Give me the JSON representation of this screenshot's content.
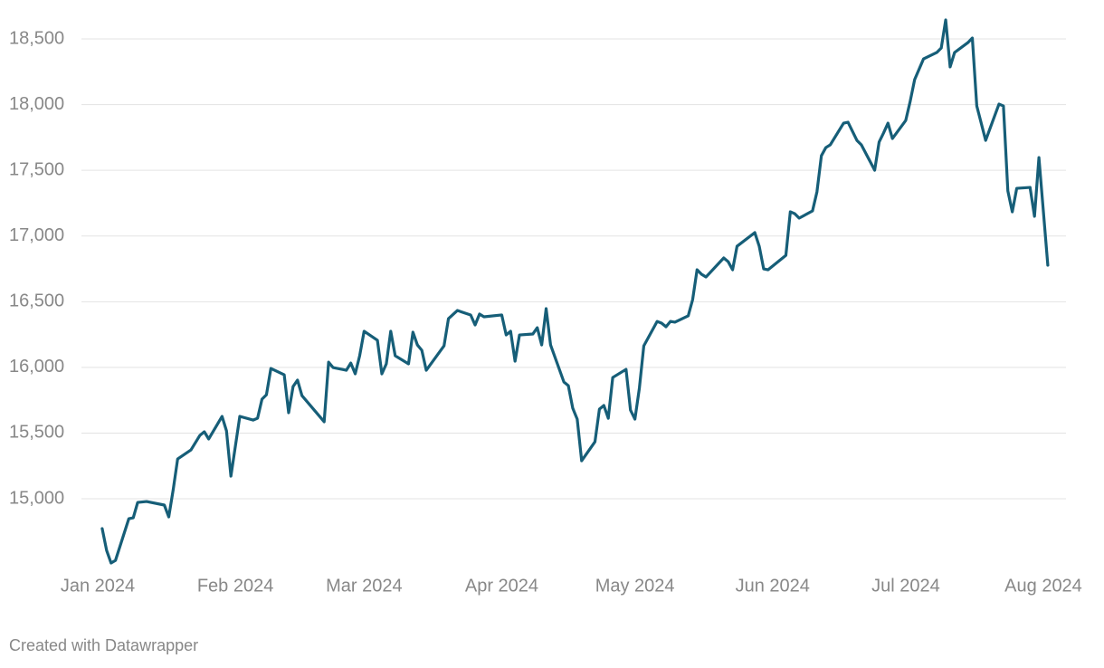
{
  "chart_data": {
    "type": "line",
    "x": [
      1,
      2,
      3,
      4,
      7,
      8,
      9,
      11,
      15,
      16,
      17,
      18,
      21,
      23,
      24,
      25,
      28,
      29,
      30,
      32,
      35,
      36,
      37,
      38,
      39,
      42,
      43,
      44,
      45,
      46,
      51,
      52,
      53,
      56,
      57,
      58,
      59,
      60,
      63,
      64,
      65,
      66,
      67,
      70,
      71,
      72,
      73,
      74,
      78,
      79,
      81,
      84,
      85,
      86,
      87,
      91,
      92,
      93,
      94,
      95,
      98,
      99,
      100,
      101,
      102,
      105,
      106,
      107,
      108,
      109,
      112,
      113,
      114,
      115,
      116,
      119,
      120,
      121,
      122,
      123,
      126,
      127,
      128,
      129,
      130,
      133,
      134,
      135,
      136,
      137,
      141,
      142,
      143,
      144,
      148,
      149,
      150,
      151,
      155,
      156,
      157,
      158,
      161,
      162,
      163,
      164,
      165,
      168,
      169,
      171,
      172,
      175,
      176,
      177,
      178,
      179,
      182,
      183,
      184,
      186,
      189,
      190,
      191,
      192,
      193,
      196,
      197,
      198,
      200,
      203,
      204,
      205,
      206,
      207,
      210,
      211,
      212,
      214
    ],
    "series": [
      {
        "color": "#165e78",
        "values": [
          14773,
          14607,
          14511,
          14531,
          14848,
          14855,
          14972,
          14979,
          14952,
          14862,
          15069,
          15303,
          15372,
          15482,
          15510,
          15455,
          15627,
          15517,
          15172,
          15627,
          15599,
          15613,
          15758,
          15792,
          15992,
          15944,
          15655,
          15854,
          15903,
          15785,
          15586,
          16040,
          15999,
          15978,
          16033,
          15951,
          16089,
          16275,
          16206,
          15951,
          16027,
          16275,
          16089,
          16027,
          16268,
          16171,
          16130,
          15978,
          16164,
          16371,
          16433,
          16399,
          16323,
          16406,
          16385,
          16399,
          16247,
          16275,
          16047,
          16247,
          16254,
          16302,
          16171,
          16447,
          16171,
          15889,
          15861,
          15689,
          15606,
          15289,
          15434,
          15682,
          15710,
          15613,
          15923,
          15985,
          15675,
          15606,
          15841,
          16164,
          16350,
          16337,
          16309,
          16350,
          16344,
          16392,
          16516,
          16743,
          16709,
          16688,
          16833,
          16805,
          16743,
          16922,
          17026,
          16922,
          16750,
          16743,
          16853,
          17184,
          17170,
          17136,
          17191,
          17336,
          17611,
          17673,
          17694,
          17859,
          17866,
          17728,
          17694,
          17501,
          17715,
          17784,
          17859,
          17742,
          17880,
          18025,
          18190,
          18348,
          18397,
          18431,
          18645,
          18287,
          18397,
          18472,
          18507,
          17990,
          17728,
          18004,
          17990,
          17343,
          17184,
          17363,
          17370,
          17150,
          17597,
          16778
        ]
      }
    ],
    "xlim": [
      0,
      213
    ],
    "xticks": [
      {
        "value": 0,
        "label": "Jan 2024"
      },
      {
        "value": 31,
        "label": "Feb 2024"
      },
      {
        "value": 60,
        "label": "Mar 2024"
      },
      {
        "value": 91,
        "label": "Apr 2024"
      },
      {
        "value": 121,
        "label": "May 2024"
      },
      {
        "value": 152,
        "label": "Jun 2024"
      },
      {
        "value": 182,
        "label": "Jul 2024"
      },
      {
        "value": 213,
        "label": "Aug 2024"
      }
    ],
    "ylim": [
      14500,
      18700
    ],
    "yticks": [
      {
        "value": 15000,
        "label": "15,000"
      },
      {
        "value": 15500,
        "label": "15,500"
      },
      {
        "value": 16000,
        "label": "16,000"
      },
      {
        "value": 16500,
        "label": "16,500"
      },
      {
        "value": 17000,
        "label": "17,000"
      },
      {
        "value": 17500,
        "label": "17,500"
      },
      {
        "value": 18000,
        "label": "18,000"
      },
      {
        "value": 18500,
        "label": "18,500"
      }
    ],
    "grid": true,
    "footer": "Created with Datawrapper"
  }
}
